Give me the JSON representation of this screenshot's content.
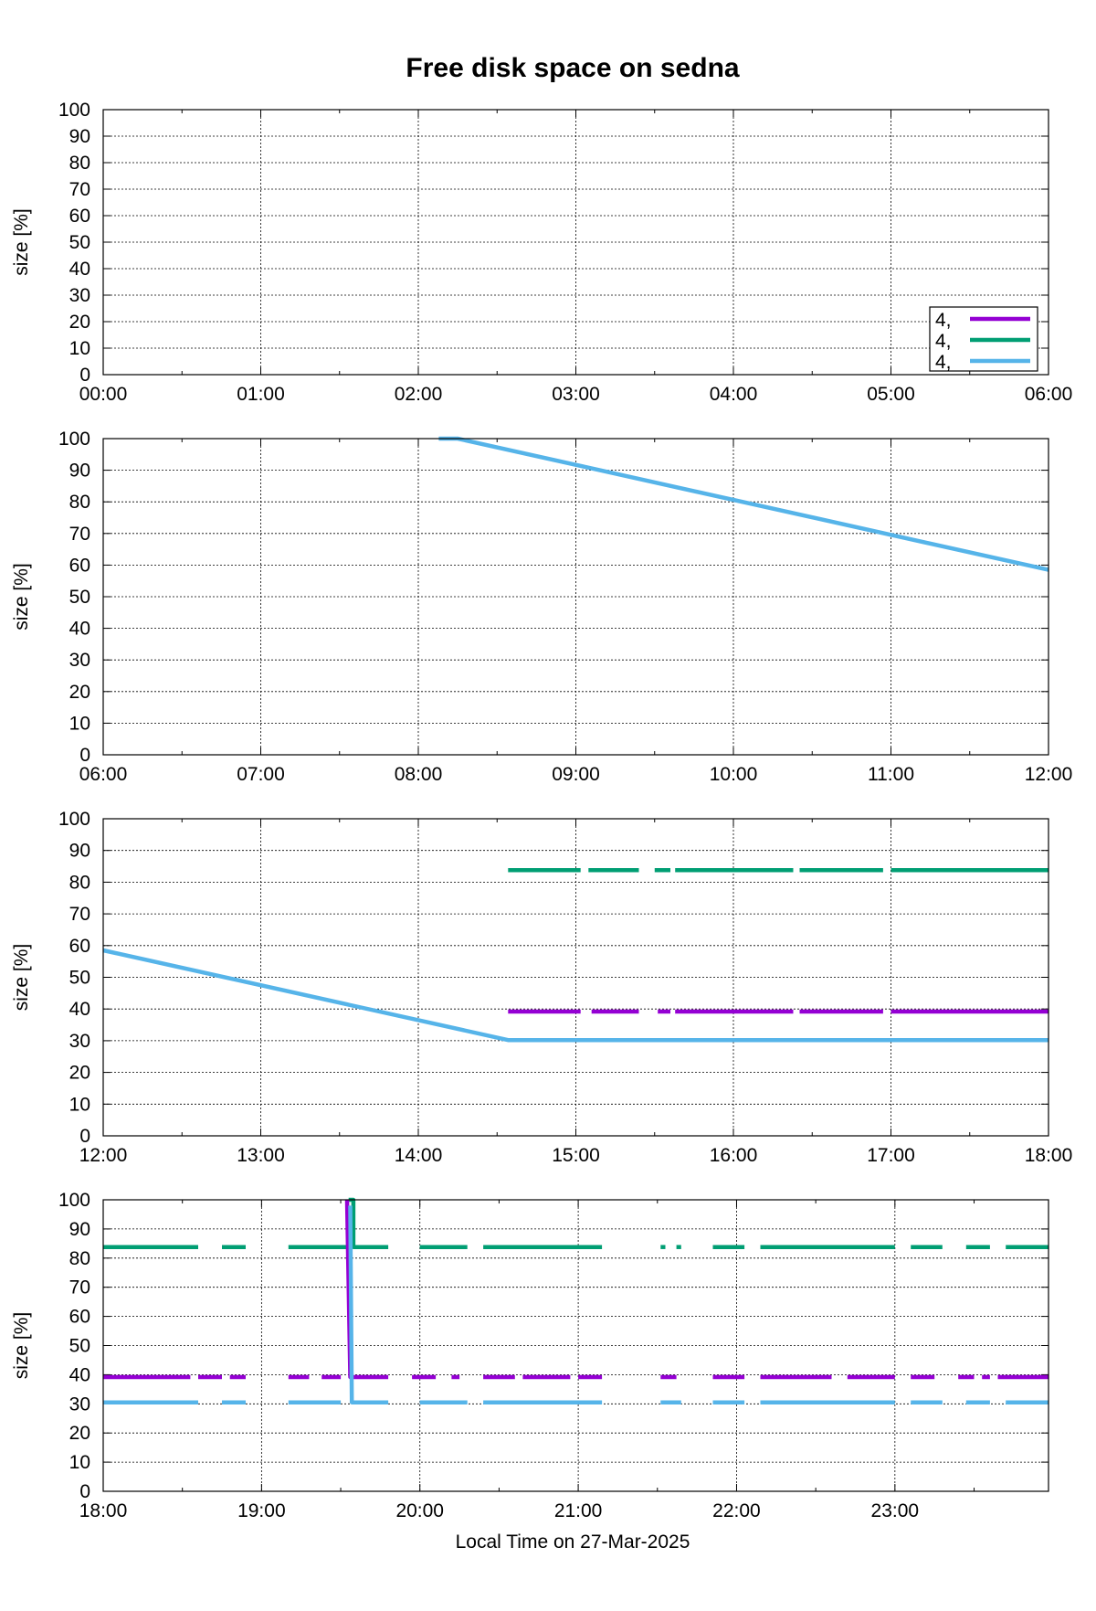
{
  "chart_data": {
    "type": "line",
    "title": "Free disk space on sedna",
    "xlabel": "Local Time on 27-Mar-2025",
    "ylabel": "size [%]",
    "grid": true,
    "legend": {
      "placement": "bottom-right of first panel",
      "entries": [
        {
          "label": "4,",
          "color": "#9400d3"
        },
        {
          "label": "4,",
          "color": "#009e73"
        },
        {
          "label": "4,",
          "color": "#56b4e9"
        }
      ]
    },
    "colors": {
      "purple": "#9400d3",
      "green": "#009e73",
      "blue": "#56b4e9"
    },
    "panels": [
      {
        "xlim": [
          0,
          6
        ],
        "ylim": [
          0,
          100
        ],
        "xticks": [
          "00:00",
          "01:00",
          "02:00",
          "03:00",
          "04:00",
          "05:00",
          "06:00"
        ],
        "yticks": [
          "0",
          "10",
          "20",
          "30",
          "40",
          "50",
          "60",
          "70",
          "80",
          "90",
          "100"
        ],
        "series": []
      },
      {
        "xlim": [
          6,
          12
        ],
        "ylim": [
          0,
          100
        ],
        "xticks": [
          "06:00",
          "07:00",
          "08:00",
          "09:00",
          "10:00",
          "11:00",
          "12:00"
        ],
        "yticks": [
          "0",
          "10",
          "20",
          "30",
          "40",
          "50",
          "60",
          "70",
          "80",
          "90",
          "100"
        ],
        "series": [
          {
            "color": "#56b4e9",
            "segments": [
              [
                [
                  8.13,
                  100
                ],
                [
                  8.25,
                  100
                ],
                [
                  12.0,
                  58.5
                ]
              ]
            ]
          }
        ]
      },
      {
        "xlim": [
          12,
          18
        ],
        "ylim": [
          0,
          100
        ],
        "xticks": [
          "12:00",
          "13:00",
          "14:00",
          "15:00",
          "16:00",
          "17:00",
          "18:00"
        ],
        "yticks": [
          "0",
          "10",
          "20",
          "30",
          "40",
          "50",
          "60",
          "70",
          "80",
          "90",
          "100"
        ],
        "series": [
          {
            "color": "#56b4e9",
            "segments": [
              [
                [
                  12.0,
                  58.5
                ],
                [
                  14.57,
                  30.2
                ],
                [
                  18.0,
                  30.2
                ]
              ]
            ]
          },
          {
            "color": "#009e73",
            "segments": [
              [
                [
                  14.57,
                  83.8
                ],
                [
                  15.03,
                  83.8
                ]
              ],
              [
                [
                  15.08,
                  83.8
                ],
                [
                  15.4,
                  83.8
                ]
              ],
              [
                [
                  15.5,
                  83.8
                ],
                [
                  15.6,
                  83.8
                ]
              ],
              [
                [
                  15.63,
                  83.8
                ],
                [
                  16.38,
                  83.8
                ]
              ],
              [
                [
                  16.42,
                  83.8
                ],
                [
                  16.95,
                  83.8
                ]
              ],
              [
                [
                  17.0,
                  83.8
                ],
                [
                  18.0,
                  83.8
                ]
              ]
            ]
          },
          {
            "color": "#9400d3",
            "segments": [
              [
                [
                  14.57,
                  39.2
                ],
                [
                  15.03,
                  39.2
                ]
              ],
              [
                [
                  15.1,
                  39.2
                ],
                [
                  15.4,
                  39.2
                ]
              ],
              [
                [
                  15.52,
                  39.2
                ],
                [
                  15.6,
                  39.2
                ]
              ],
              [
                [
                  15.63,
                  39.2
                ],
                [
                  16.38,
                  39.2
                ]
              ],
              [
                [
                  16.42,
                  39.2
                ],
                [
                  16.95,
                  39.2
                ]
              ],
              [
                [
                  17.0,
                  39.2
                ],
                [
                  18.0,
                  39.2
                ]
              ]
            ]
          }
        ]
      },
      {
        "xlim": [
          18,
          23.97
        ],
        "ylim": [
          0,
          100
        ],
        "xticks": [
          "18:00",
          "19:00",
          "20:00",
          "21:00",
          "22:00",
          "23:00"
        ],
        "yticks": [
          "0",
          "10",
          "20",
          "30",
          "40",
          "50",
          "60",
          "70",
          "80",
          "90",
          "100"
        ],
        "series": [
          {
            "color": "#009e73",
            "segments": [
              [
                [
                  18.0,
                  83.8
                ],
                [
                  18.6,
                  83.8
                ]
              ],
              [
                [
                  18.75,
                  83.8
                ],
                [
                  18.9,
                  83.8
                ]
              ],
              [
                [
                  19.17,
                  83.8
                ],
                [
                  19.55,
                  83.8
                ]
              ],
              [
                [
                  19.55,
                  100
                ],
                [
                  19.58,
                  100
                ],
                [
                  19.58,
                  83.8
                ],
                [
                  19.8,
                  83.8
                ]
              ],
              [
                [
                  20.0,
                  83.8
                ],
                [
                  20.3,
                  83.8
                ]
              ],
              [
                [
                  20.4,
                  83.8
                ],
                [
                  21.15,
                  83.8
                ]
              ],
              [
                [
                  21.52,
                  83.8
                ],
                [
                  21.55,
                  83.8
                ]
              ],
              [
                [
                  21.62,
                  83.8
                ],
                [
                  21.65,
                  83.8
                ]
              ],
              [
                [
                  21.85,
                  83.8
                ],
                [
                  22.05,
                  83.8
                ]
              ],
              [
                [
                  22.15,
                  83.8
                ],
                [
                  23.0,
                  83.8
                ]
              ],
              [
                [
                  23.1,
                  83.8
                ],
                [
                  23.3,
                  83.8
                ]
              ],
              [
                [
                  23.45,
                  83.8
                ],
                [
                  23.6,
                  83.8
                ]
              ],
              [
                [
                  23.7,
                  83.8
                ],
                [
                  23.97,
                  83.8
                ]
              ]
            ]
          },
          {
            "color": "#9400d3",
            "segments": [
              [
                [
                  18.0,
                  39.2
                ],
                [
                  18.55,
                  39.2
                ]
              ],
              [
                [
                  18.6,
                  39.2
                ],
                [
                  18.75,
                  39.2
                ]
              ],
              [
                [
                  18.8,
                  39.2
                ],
                [
                  18.9,
                  39.2
                ]
              ],
              [
                [
                  19.17,
                  39.2
                ],
                [
                  19.3,
                  39.2
                ]
              ],
              [
                [
                  19.38,
                  39.2
                ],
                [
                  19.5,
                  39.2
                ]
              ],
              [
                [
                  19.54,
                  100
                ],
                [
                  19.56,
                  39.2
                ],
                [
                  19.8,
                  39.2
                ]
              ],
              [
                [
                  19.95,
                  39.2
                ],
                [
                  20.1,
                  39.2
                ]
              ],
              [
                [
                  20.2,
                  39.2
                ],
                [
                  20.25,
                  39.2
                ]
              ],
              [
                [
                  20.4,
                  39.2
                ],
                [
                  20.6,
                  39.2
                ]
              ],
              [
                [
                  20.65,
                  39.2
                ],
                [
                  20.95,
                  39.2
                ]
              ],
              [
                [
                  21.0,
                  39.2
                ],
                [
                  21.15,
                  39.2
                ]
              ],
              [
                [
                  21.52,
                  39.2
                ],
                [
                  21.62,
                  39.2
                ]
              ],
              [
                [
                  21.85,
                  39.2
                ],
                [
                  22.05,
                  39.2
                ]
              ],
              [
                [
                  22.15,
                  39.2
                ],
                [
                  22.6,
                  39.2
                ]
              ],
              [
                [
                  22.7,
                  39.2
                ],
                [
                  23.0,
                  39.2
                ]
              ],
              [
                [
                  23.1,
                  39.2
                ],
                [
                  23.25,
                  39.2
                ]
              ],
              [
                [
                  23.4,
                  39.2
                ],
                [
                  23.5,
                  39.2
                ]
              ],
              [
                [
                  23.55,
                  39.2
                ],
                [
                  23.6,
                  39.2
                ]
              ],
              [
                [
                  23.65,
                  39.2
                ],
                [
                  23.97,
                  39.2
                ]
              ]
            ]
          },
          {
            "color": "#56b4e9",
            "segments": [
              [
                [
                  18.0,
                  30.5
                ],
                [
                  18.6,
                  30.5
                ]
              ],
              [
                [
                  18.75,
                  30.5
                ],
                [
                  18.9,
                  30.5
                ]
              ],
              [
                [
                  19.17,
                  30.5
                ],
                [
                  19.5,
                  30.5
                ]
              ],
              [
                [
                  19.56,
                  98
                ],
                [
                  19.57,
                  30.5
                ],
                [
                  19.8,
                  30.5
                ]
              ],
              [
                [
                  20.0,
                  30.5
                ],
                [
                  20.3,
                  30.5
                ]
              ],
              [
                [
                  20.4,
                  30.5
                ],
                [
                  21.15,
                  30.5
                ]
              ],
              [
                [
                  21.52,
                  30.5
                ],
                [
                  21.65,
                  30.5
                ]
              ],
              [
                [
                  21.85,
                  30.5
                ],
                [
                  22.05,
                  30.5
                ]
              ],
              [
                [
                  22.15,
                  30.5
                ],
                [
                  23.0,
                  30.5
                ]
              ],
              [
                [
                  23.1,
                  30.5
                ],
                [
                  23.3,
                  30.5
                ]
              ],
              [
                [
                  23.45,
                  30.5
                ],
                [
                  23.6,
                  30.5
                ]
              ],
              [
                [
                  23.7,
                  30.5
                ],
                [
                  23.97,
                  30.5
                ]
              ]
            ]
          }
        ]
      }
    ]
  }
}
